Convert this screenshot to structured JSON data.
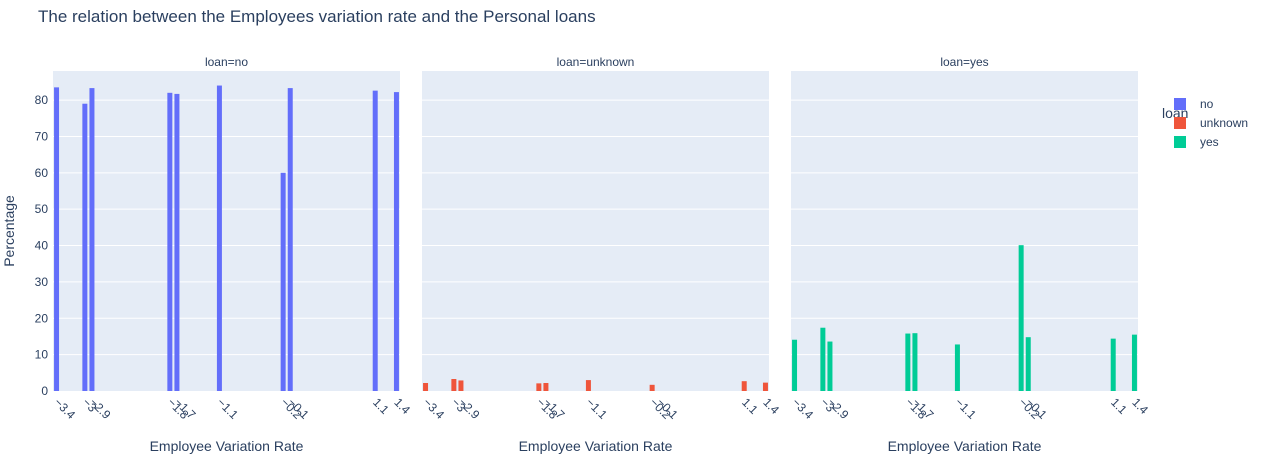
{
  "chart_data": {
    "type": "bar",
    "title": "The relation between the Employees variation rate and the Personal loans",
    "ylabel": "Percentage",
    "xlabel": "Employee Variation Rate",
    "ylim": [
      0,
      88
    ],
    "yticks": [
      0,
      10,
      20,
      30,
      40,
      50,
      60,
      70,
      80
    ],
    "x": [
      -3.4,
      -3,
      -2.9,
      -1.8,
      -1.7,
      -1.1,
      -0.2,
      -0.1,
      1.1,
      1.4
    ],
    "x_tick_labels": [
      "−3.4",
      "−3",
      "−2.9",
      "−1.8",
      "−1.7",
      "−1.1",
      "−0.2",
      "−0.1",
      "1.1",
      "1.4"
    ],
    "legend": {
      "title": "loan",
      "position": "right"
    },
    "series": [
      {
        "name": "no",
        "facet_label": "loan=no",
        "color": "#636efa",
        "values": [
          83.5,
          79,
          83.3,
          82,
          81.7,
          84,
          60,
          83.3,
          82.6,
          82.2
        ]
      },
      {
        "name": "unknown",
        "facet_label": "loan=unknown",
        "color": "#ef553b",
        "values": [
          2.2,
          3.3,
          2.9,
          2.1,
          2.2,
          3.0,
          1.7,
          0,
          2.7,
          2.3
        ]
      },
      {
        "name": "yes",
        "facet_label": "loan=yes",
        "color": "#00cc96",
        "values": [
          14.1,
          17.4,
          13.6,
          15.8,
          15.9,
          12.8,
          40.1,
          14.8,
          14.4,
          15.5
        ]
      }
    ]
  }
}
